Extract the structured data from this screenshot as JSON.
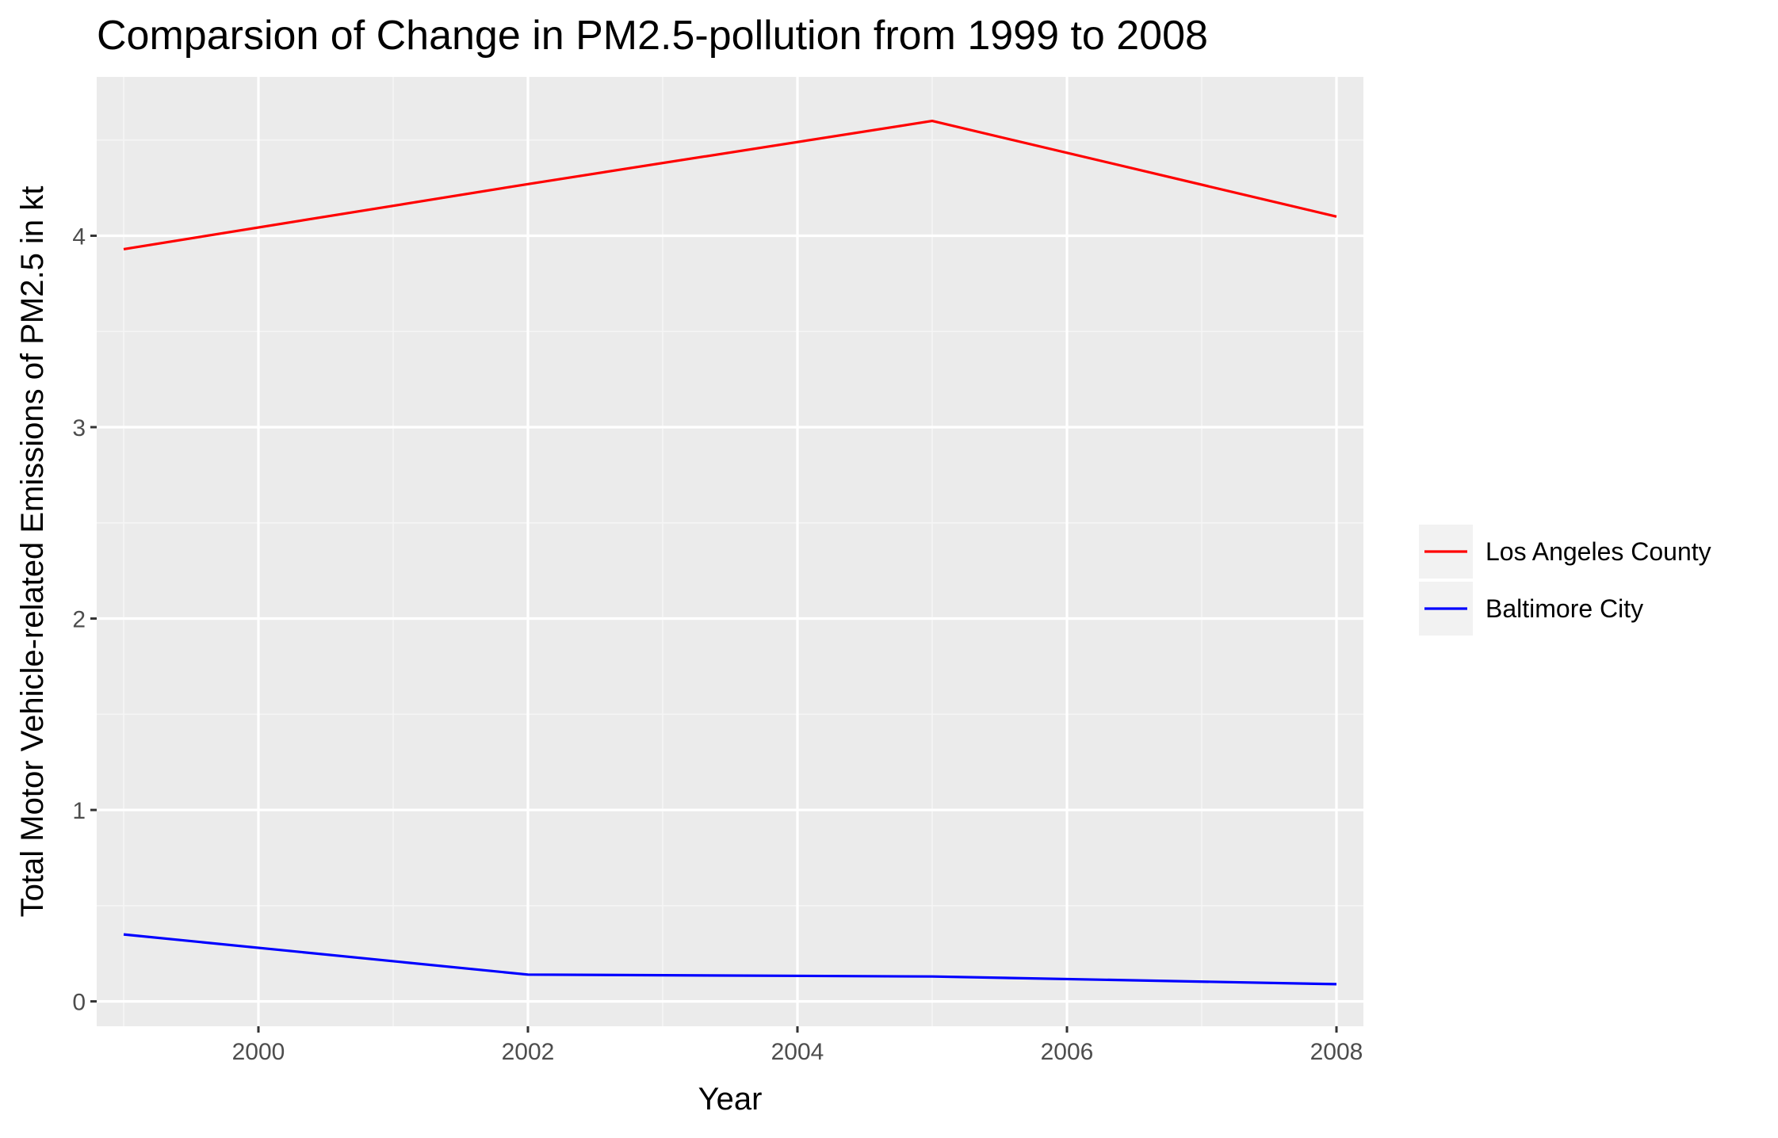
{
  "chart_data": {
    "type": "line",
    "title": "Comparsion of Change in PM2.5-pollution from 1999 to 2008",
    "xlabel": "Year",
    "ylabel": "Total Motor Vehicle-related Emissions of PM2.5 in kt",
    "xlim": [
      1998.8,
      2008.2
    ],
    "ylim": [
      -0.13,
      4.83
    ],
    "x_ticks": [
      2000,
      2002,
      2004,
      2006,
      2008
    ],
    "x_tick_labels": [
      "2000",
      "2002",
      "2004",
      "2006",
      "2008"
    ],
    "y_ticks": [
      0,
      1,
      2,
      3,
      4
    ],
    "y_tick_labels": [
      "0",
      "1",
      "2",
      "3",
      "4"
    ],
    "grid": true,
    "legend_position": "right",
    "x": [
      1999,
      2002,
      2005,
      2008
    ],
    "series": [
      {
        "name": "Los Angeles County",
        "color": "#ff0000",
        "values": [
          3.93,
          4.27,
          4.6,
          4.1
        ]
      },
      {
        "name": "Baltimore City",
        "color": "#0000ff",
        "values": [
          0.35,
          0.14,
          0.13,
          0.09
        ]
      }
    ]
  },
  "colors": {
    "panel_background": "#ebebeb",
    "grid_major": "#ffffff",
    "grid_minor": "#f5f5f5",
    "legend_key_background": "#f2f2f2"
  }
}
